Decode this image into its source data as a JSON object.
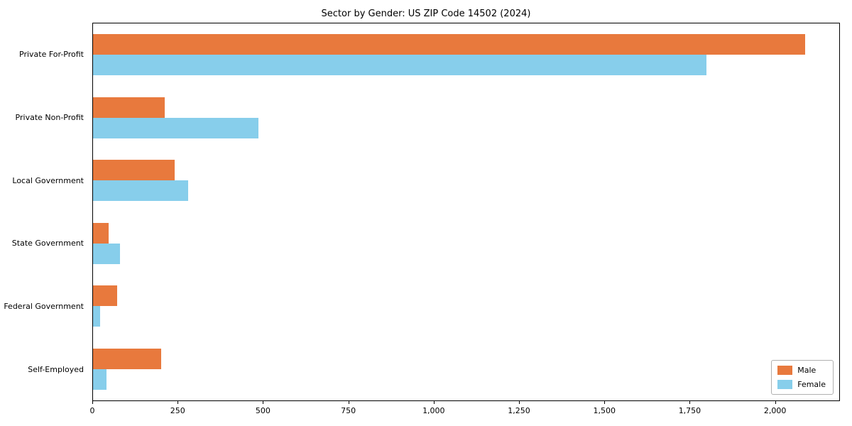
{
  "chart_data": {
    "type": "bar",
    "orientation": "horizontal",
    "title": "Sector by Gender: US ZIP Code 14502 (2024)",
    "categories": [
      "Private For-Profit",
      "Private Non-Profit",
      "Local Government",
      "State Government",
      "Federal Government",
      "Self-Employed"
    ],
    "series": [
      {
        "name": "Male",
        "color": "#e8793d",
        "values": [
          2090,
          210,
          240,
          45,
          70,
          200
        ]
      },
      {
        "name": "Female",
        "color": "#87ceeb",
        "values": [
          1800,
          485,
          280,
          80,
          20,
          40
        ]
      }
    ],
    "xlim": [
      0,
      2190
    ],
    "x_ticks": [
      0,
      250,
      500,
      750,
      1000,
      1250,
      1500,
      1750,
      2000
    ],
    "x_tick_labels": [
      "0",
      "250",
      "500",
      "750",
      "1,000",
      "1,250",
      "1,500",
      "1,750",
      "2,000"
    ],
    "ylabel": "",
    "xlabel": "",
    "grid": false,
    "legend_position": "lower right"
  }
}
